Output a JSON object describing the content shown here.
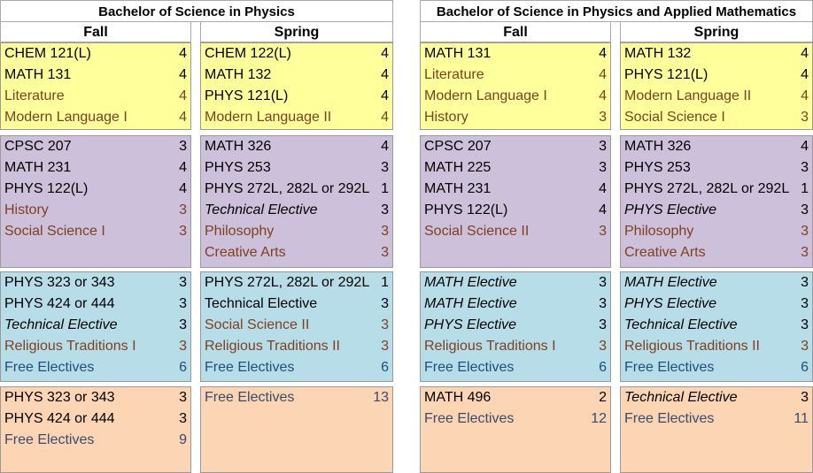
{
  "plans": [
    {
      "title": "Bachelor of Science in Physics",
      "columns": [
        {
          "header": "Fall",
          "blocks": [
            {
              "rows": [
                {
                  "name": "CHEM 121(L)",
                  "credits": "4",
                  "color": "#000000",
                  "italic": false
                },
                {
                  "name": "MATH 131",
                  "credits": "4",
                  "color": "#000000",
                  "italic": false
                },
                {
                  "name": "Literature",
                  "credits": "4",
                  "color": "#7f3f1f",
                  "italic": false
                },
                {
                  "name": "Modern Language I",
                  "credits": "4",
                  "color": "#7f3f1f",
                  "italic": false
                }
              ]
            },
            {
              "rows": [
                {
                  "name": "CPSC 207",
                  "credits": "3",
                  "color": "#000000",
                  "italic": false
                },
                {
                  "name": "MATH 231",
                  "credits": "4",
                  "color": "#000000",
                  "italic": false
                },
                {
                  "name": "PHYS 122(L)",
                  "credits": "4",
                  "color": "#000000",
                  "italic": false
                },
                {
                  "name": "History",
                  "credits": "3",
                  "color": "#7f3f1f",
                  "italic": false
                },
                {
                  "name": "Social Science I",
                  "credits": "3",
                  "color": "#7f3f1f",
                  "italic": false
                }
              ]
            },
            {
              "rows": [
                {
                  "name": "PHYS 323 or 343",
                  "credits": "3",
                  "color": "#000000",
                  "italic": false
                },
                {
                  "name": "PHYS 424 or 444",
                  "credits": "3",
                  "color": "#000000",
                  "italic": false
                },
                {
                  "name": "Technical Elective",
                  "credits": "3",
                  "color": "#000000",
                  "italic": true
                },
                {
                  "name": "Religious Traditions I",
                  "credits": "3",
                  "color": "#7f3f1f",
                  "italic": false
                },
                {
                  "name": "Free Electives",
                  "credits": "6",
                  "color": "#1f4e79",
                  "italic": false
                }
              ]
            },
            {
              "rows": [
                {
                  "name": "PHYS 323 or 343",
                  "credits": "3",
                  "color": "#000000",
                  "italic": false
                },
                {
                  "name": "PHYS 424 or 444",
                  "credits": "3",
                  "color": "#000000",
                  "italic": false
                },
                {
                  "name": "Free Electives",
                  "credits": "9",
                  "color": "#3b4a6b",
                  "italic": false
                }
              ]
            }
          ]
        },
        {
          "header": "Spring",
          "blocks": [
            {
              "rows": [
                {
                  "name": "CHEM 122(L)",
                  "credits": "4",
                  "color": "#000000",
                  "italic": false
                },
                {
                  "name": "MATH 132",
                  "credits": "4",
                  "color": "#000000",
                  "italic": false
                },
                {
                  "name": "PHYS 121(L)",
                  "credits": "4",
                  "color": "#000000",
                  "italic": false
                },
                {
                  "name": "Modern Language II",
                  "credits": "4",
                  "color": "#7f3f1f",
                  "italic": false
                }
              ]
            },
            {
              "rows": [
                {
                  "name": "MATH 326",
                  "credits": "4",
                  "color": "#000000",
                  "italic": false
                },
                {
                  "name": "PHYS 253",
                  "credits": "3",
                  "color": "#000000",
                  "italic": false
                },
                {
                  "name": "PHYS 272L, 282L or 292L",
                  "credits": "1",
                  "color": "#000000",
                  "italic": false
                },
                {
                  "name": "Technical Elective",
                  "credits": "3",
                  "color": "#000000",
                  "italic": true
                },
                {
                  "name": "Philosophy",
                  "credits": "3",
                  "color": "#7f3f1f",
                  "italic": false
                },
                {
                  "name": "Creative Arts",
                  "credits": "3",
                  "color": "#7f3f1f",
                  "italic": false
                }
              ]
            },
            {
              "rows": [
                {
                  "name": "PHYS 272L, 282L or 292L",
                  "credits": "1",
                  "color": "#000000",
                  "italic": false
                },
                {
                  "name": "Technical Elective",
                  "credits": "3",
                  "color": "#000000",
                  "italic": false
                },
                {
                  "name": "Social Science II",
                  "credits": "3",
                  "color": "#7f3f1f",
                  "italic": false
                },
                {
                  "name": "Religious Traditions II",
                  "credits": "3",
                  "color": "#7f3f1f",
                  "italic": false
                },
                {
                  "name": "Free Electives",
                  "credits": "6",
                  "color": "#1f4e79",
                  "italic": false
                }
              ]
            },
            {
              "rows": [
                {
                  "name": "Free Electives",
                  "credits": "13",
                  "color": "#3b4a6b",
                  "italic": false
                }
              ]
            }
          ]
        }
      ]
    },
    {
      "title": "Bachelor of Science in Physics and Applied Mathematics",
      "columns": [
        {
          "header": "Fall",
          "blocks": [
            {
              "rows": [
                {
                  "name": "MATH 131",
                  "credits": "4",
                  "color": "#000000",
                  "italic": false
                },
                {
                  "name": "Literature",
                  "credits": "4",
                  "color": "#7f3f1f",
                  "italic": false
                },
                {
                  "name": "Modern Language I",
                  "credits": "4",
                  "color": "#7f3f1f",
                  "italic": false
                },
                {
                  "name": "History",
                  "credits": "3",
                  "color": "#7f3f1f",
                  "italic": false
                }
              ]
            },
            {
              "rows": [
                {
                  "name": "CPSC 207",
                  "credits": "3",
                  "color": "#000000",
                  "italic": false
                },
                {
                  "name": "MATH 225",
                  "credits": "3",
                  "color": "#000000",
                  "italic": false
                },
                {
                  "name": "MATH 231",
                  "credits": "4",
                  "color": "#000000",
                  "italic": false
                },
                {
                  "name": "PHYS 122(L)",
                  "credits": "4",
                  "color": "#000000",
                  "italic": false
                },
                {
                  "name": "Social Science II",
                  "credits": "3",
                  "color": "#7f3f1f",
                  "italic": false
                }
              ]
            },
            {
              "rows": [
                {
                  "name": "MATH Elective",
                  "credits": "3",
                  "color": "#000000",
                  "italic": true
                },
                {
                  "name": "MATH Elective",
                  "credits": "3",
                  "color": "#000000",
                  "italic": true
                },
                {
                  "name": "PHYS Elective",
                  "credits": "3",
                  "color": "#000000",
                  "italic": true
                },
                {
                  "name": "Religious Traditions I",
                  "credits": "3",
                  "color": "#7f3f1f",
                  "italic": false
                },
                {
                  "name": "Free Electives",
                  "credits": "6",
                  "color": "#1f4e79",
                  "italic": false
                }
              ]
            },
            {
              "rows": [
                {
                  "name": "MATH 496",
                  "credits": "2",
                  "color": "#000000",
                  "italic": false
                },
                {
                  "name": "Free Electives",
                  "credits": "12",
                  "color": "#3b4a6b",
                  "italic": false
                }
              ]
            }
          ]
        },
        {
          "header": "Spring",
          "blocks": [
            {
              "rows": [
                {
                  "name": "MATH 132",
                  "credits": "4",
                  "color": "#000000",
                  "italic": false
                },
                {
                  "name": "PHYS 121(L)",
                  "credits": "4",
                  "color": "#000000",
                  "italic": false
                },
                {
                  "name": "Modern Language II",
                  "credits": "4",
                  "color": "#7f3f1f",
                  "italic": false
                },
                {
                  "name": "Social Science I",
                  "credits": "3",
                  "color": "#7f3f1f",
                  "italic": false
                }
              ]
            },
            {
              "rows": [
                {
                  "name": "MATH 326",
                  "credits": "4",
                  "color": "#000000",
                  "italic": false
                },
                {
                  "name": "PHYS 253",
                  "credits": "3",
                  "color": "#000000",
                  "italic": false
                },
                {
                  "name": "PHYS 272L, 282L or 292L",
                  "credits": "1",
                  "color": "#000000",
                  "italic": false
                },
                {
                  "name": "PHYS Elective",
                  "credits": "3",
                  "color": "#000000",
                  "italic": true
                },
                {
                  "name": "Philosophy",
                  "credits": "3",
                  "color": "#7f3f1f",
                  "italic": false
                },
                {
                  "name": "Creative Arts",
                  "credits": "3",
                  "color": "#7f3f1f",
                  "italic": false
                }
              ]
            },
            {
              "rows": [
                {
                  "name": "MATH Elective",
                  "credits": "3",
                  "color": "#000000",
                  "italic": true
                },
                {
                  "name": "PHYS Elective",
                  "credits": "3",
                  "color": "#000000",
                  "italic": true
                },
                {
                  "name": "Technical Elective",
                  "credits": "3",
                  "color": "#000000",
                  "italic": true
                },
                {
                  "name": "Religious Traditions II",
                  "credits": "3",
                  "color": "#7f3f1f",
                  "italic": false
                },
                {
                  "name": "Free Electives",
                  "credits": "6",
                  "color": "#1f4e79",
                  "italic": false
                }
              ]
            },
            {
              "rows": [
                {
                  "name": "Technical Elective",
                  "credits": "3",
                  "color": "#000000",
                  "italic": true
                },
                {
                  "name": "Free Electives",
                  "credits": "11",
                  "color": "#3b4a6b",
                  "italic": false
                }
              ]
            }
          ]
        }
      ]
    }
  ]
}
